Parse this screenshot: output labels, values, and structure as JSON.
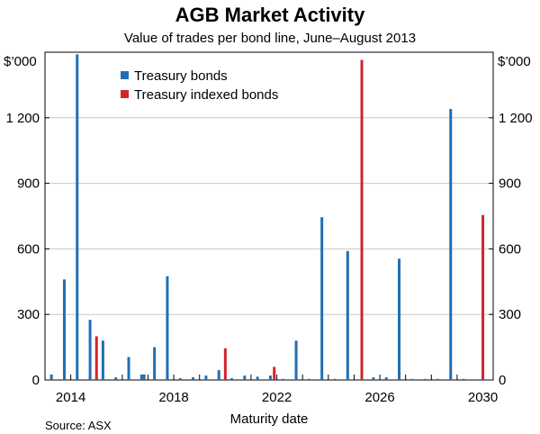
{
  "chart_data": {
    "type": "bar",
    "title": "AGB Market Activity",
    "subtitle": "Value of trades per bond line, June–August 2013",
    "xlabel": "Maturity date",
    "ylabel_unit": "$’000",
    "source": "Source: ASX",
    "xlim": [
      2013.0,
      2030.4
    ],
    "ylim": [
      0,
      1500
    ],
    "x_ticks": [
      2014,
      2018,
      2022,
      2026,
      2030
    ],
    "y_ticks": [
      0,
      300,
      600,
      900,
      1200
    ],
    "grid": true,
    "legend_position": "top-left",
    "series": [
      {
        "name": "Treasury bonds",
        "color": "#1f6fb5",
        "points": [
          {
            "x": 2013.25,
            "y": 25
          },
          {
            "x": 2013.75,
            "y": 460
          },
          {
            "x": 2014.25,
            "y": 1490
          },
          {
            "x": 2014.75,
            "y": 275
          },
          {
            "x": 2015.25,
            "y": 180
          },
          {
            "x": 2015.75,
            "y": 12
          },
          {
            "x": 2016.25,
            "y": 105
          },
          {
            "x": 2016.75,
            "y": 25
          },
          {
            "x": 2016.85,
            "y": 25
          },
          {
            "x": 2017.25,
            "y": 150
          },
          {
            "x": 2017.75,
            "y": 475
          },
          {
            "x": 2018.25,
            "y": 8
          },
          {
            "x": 2018.75,
            "y": 12
          },
          {
            "x": 2019.25,
            "y": 20
          },
          {
            "x": 2019.75,
            "y": 45
          },
          {
            "x": 2020.25,
            "y": 8
          },
          {
            "x": 2020.75,
            "y": 20
          },
          {
            "x": 2021.25,
            "y": 15
          },
          {
            "x": 2021.75,
            "y": 20
          },
          {
            "x": 2022.25,
            "y": 5
          },
          {
            "x": 2022.75,
            "y": 180
          },
          {
            "x": 2023.25,
            "y": 5
          },
          {
            "x": 2023.75,
            "y": 745
          },
          {
            "x": 2024.25,
            "y": 5
          },
          {
            "x": 2024.75,
            "y": 590
          },
          {
            "x": 2025.75,
            "y": 12
          },
          {
            "x": 2026.25,
            "y": 12
          },
          {
            "x": 2026.75,
            "y": 555
          },
          {
            "x": 2027.25,
            "y": 5
          },
          {
            "x": 2027.75,
            "y": 5
          },
          {
            "x": 2028.25,
            "y": 5
          },
          {
            "x": 2028.75,
            "y": 1240
          },
          {
            "x": 2029.25,
            "y": 5
          }
        ]
      },
      {
        "name": "Treasury indexed bonds",
        "color": "#d2242d",
        "points": [
          {
            "x": 2015.0,
            "y": 200
          },
          {
            "x": 2020.0,
            "y": 145
          },
          {
            "x": 2021.9,
            "y": 60
          },
          {
            "x": 2025.3,
            "y": 1465
          },
          {
            "x": 2030.0,
            "y": 755
          }
        ]
      }
    ]
  }
}
